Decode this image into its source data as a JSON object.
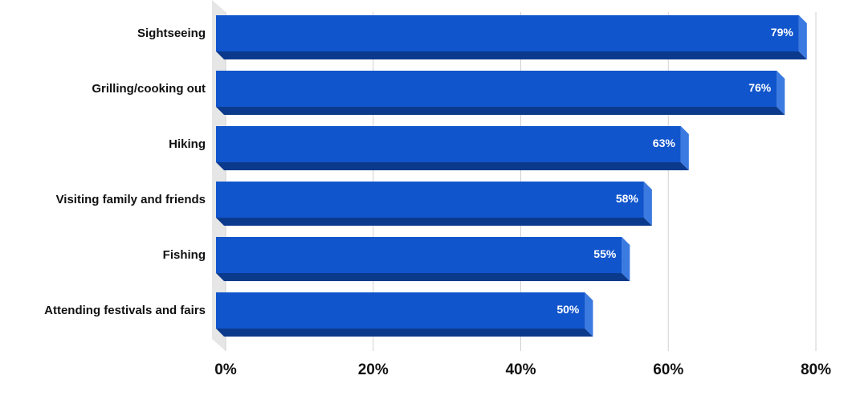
{
  "chart_data": {
    "type": "bar",
    "orientation": "horizontal",
    "categories": [
      "Sightseeing",
      "Grilling/cooking out",
      "Hiking",
      "Visiting family and friends",
      "Fishing",
      "Attending festivals and fairs"
    ],
    "values": [
      79,
      76,
      63,
      58,
      55,
      50
    ],
    "value_labels": [
      "79%",
      "76%",
      "63%",
      "58%",
      "55%",
      "50%"
    ],
    "color": "#1155cc",
    "xlim": [
      0,
      80
    ],
    "xticks": [
      {
        "value": 0,
        "label": "0%"
      },
      {
        "value": 20,
        "label": "20%"
      },
      {
        "value": 40,
        "label": "40%"
      },
      {
        "value": 60,
        "label": "60%"
      },
      {
        "value": 80,
        "label": "80%"
      }
    ],
    "grid": true
  }
}
